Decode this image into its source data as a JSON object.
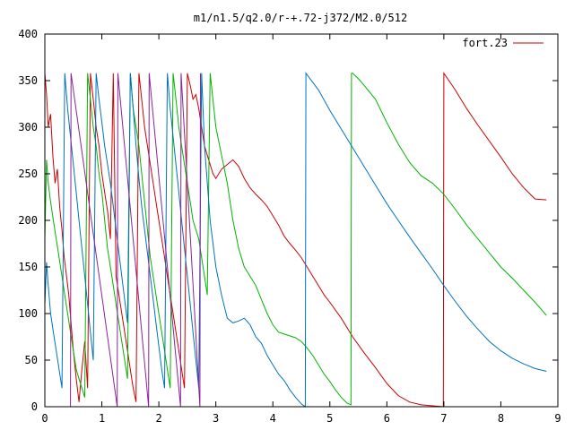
{
  "chart_data": {
    "type": "line",
    "title": "m1/n1.5/q2.0/r-+.72-j372/M2.0/512",
    "xlabel": "",
    "ylabel": "",
    "xlim": [
      0,
      9
    ],
    "ylim": [
      0,
      400
    ],
    "xticks": [
      0,
      1,
      2,
      3,
      4,
      5,
      6,
      7,
      8,
      9
    ],
    "yticks": [
      0,
      50,
      100,
      150,
      200,
      250,
      300,
      350,
      400
    ],
    "grid": false,
    "legend": {
      "position": "top-right",
      "entries": [
        "fort.23"
      ]
    },
    "colors": {
      "red": "#cc0000",
      "green": "#00b400",
      "blue": "#0072bd",
      "purple": "#8b2299",
      "axis": "#000000"
    },
    "series": [
      {
        "name": "fort.23",
        "color": "#cc0000",
        "x": [
          0.0,
          0.03,
          0.06,
          0.1,
          0.14,
          0.18,
          0.22,
          0.26,
          0.3,
          0.34,
          0.38,
          0.42,
          0.46,
          0.5,
          0.55,
          0.6,
          0.65,
          0.7,
          0.75,
          0.8,
          0.85,
          0.9,
          0.95,
          1.0,
          1.05,
          1.1,
          1.15,
          1.2,
          1.25,
          1.3,
          1.35,
          1.4,
          1.45,
          1.5,
          1.55,
          1.6,
          1.65,
          1.7,
          1.75,
          1.8,
          1.85,
          1.9,
          1.95,
          2.0,
          2.05,
          2.1,
          2.15,
          2.2,
          2.25,
          2.3,
          2.35,
          2.4,
          2.45,
          2.5,
          2.55,
          2.6,
          2.65,
          2.7,
          2.75,
          2.8,
          2.85,
          2.9,
          2.95,
          3.0,
          3.1,
          3.2,
          3.3,
          3.4,
          3.5,
          3.6,
          3.7,
          3.8,
          3.9,
          4.0,
          4.1,
          4.2,
          4.3,
          4.4,
          4.5,
          4.6,
          4.7,
          4.8,
          4.9,
          5.0,
          5.2,
          5.4,
          5.6,
          5.8,
          6.0,
          6.2,
          6.4,
          6.6,
          6.8,
          6.99,
          7.0,
          7.2,
          7.4,
          7.6,
          7.8,
          8.0,
          8.2,
          8.4,
          8.6,
          8.8
        ],
        "y": [
          358,
          335,
          300,
          314,
          270,
          240,
          255,
          215,
          190,
          160,
          140,
          120,
          90,
          60,
          30,
          5,
          40,
          70,
          20,
          358,
          330,
          300,
          280,
          250,
          230,
          210,
          180,
          358,
          140,
          120,
          100,
          80,
          60,
          40,
          20,
          5,
          358,
          330,
          300,
          280,
          260,
          240,
          220,
          200,
          180,
          160,
          140,
          120,
          100,
          80,
          60,
          40,
          20,
          358,
          345,
          330,
          335,
          320,
          300,
          280,
          270,
          260,
          250,
          245,
          255,
          260,
          265,
          258,
          245,
          235,
          228,
          222,
          215,
          205,
          195,
          183,
          175,
          168,
          160,
          150,
          140,
          130,
          120,
          112,
          95,
          75,
          58,
          42,
          25,
          12,
          5,
          2,
          1,
          0,
          358,
          340,
          320,
          302,
          285,
          268,
          250,
          235,
          223,
          222
        ]
      },
      {
        "name": "",
        "color": "#00b400",
        "x": [
          0.0,
          0.03,
          0.06,
          0.1,
          0.15,
          0.2,
          0.25,
          0.3,
          0.35,
          0.4,
          0.45,
          0.5,
          0.55,
          0.6,
          0.65,
          0.7,
          0.75,
          0.8,
          0.85,
          0.9,
          0.95,
          1.0,
          1.05,
          1.1,
          1.15,
          1.2,
          1.25,
          1.3,
          1.35,
          1.4,
          1.45,
          1.5,
          1.55,
          1.6,
          1.65,
          1.7,
          1.75,
          1.8,
          1.85,
          1.9,
          1.95,
          2.0,
          2.05,
          2.1,
          2.15,
          2.2,
          2.25,
          2.3,
          2.35,
          2.4,
          2.45,
          2.5,
          2.55,
          2.6,
          2.65,
          2.7,
          2.75,
          2.8,
          2.85,
          2.9,
          3.0,
          3.1,
          3.2,
          3.3,
          3.4,
          3.5,
          3.6,
          3.7,
          3.8,
          3.9,
          4.0,
          4.1,
          4.2,
          4.3,
          4.4,
          4.5,
          4.6,
          4.7,
          4.8,
          4.9,
          5.0,
          5.1,
          5.2,
          5.3,
          5.37,
          5.38,
          5.4,
          5.5,
          5.6,
          5.8,
          6.0,
          6.2,
          6.4,
          6.6,
          6.8,
          7.0,
          7.2,
          7.4,
          7.6,
          7.8,
          8.0,
          8.2,
          8.4,
          8.6,
          8.8
        ],
        "y": [
          180,
          265,
          240,
          220,
          200,
          180,
          160,
          140,
          120,
          100,
          80,
          60,
          40,
          30,
          20,
          10,
          358,
          330,
          300,
          280,
          250,
          230,
          200,
          170,
          150,
          130,
          110,
          90,
          70,
          50,
          30,
          358,
          320,
          300,
          280,
          250,
          220,
          190,
          160,
          140,
          120,
          100,
          80,
          60,
          40,
          20,
          358,
          330,
          300,
          280,
          260,
          240,
          220,
          200,
          190,
          180,
          160,
          140,
          120,
          358,
          300,
          270,
          240,
          200,
          170,
          150,
          140,
          130,
          115,
          100,
          88,
          80,
          78,
          76,
          74,
          70,
          63,
          55,
          45,
          35,
          27,
          18,
          10,
          4,
          2,
          358,
          358,
          352,
          345,
          330,
          305,
          282,
          262,
          248,
          240,
          228,
          212,
          195,
          180,
          165,
          150,
          138,
          125,
          112,
          98
        ]
      },
      {
        "name": "",
        "color": "#0072bd",
        "x": [
          0.0,
          0.03,
          0.06,
          0.1,
          0.15,
          0.2,
          0.25,
          0.3,
          0.35,
          0.4,
          0.45,
          0.5,
          0.55,
          0.6,
          0.65,
          0.7,
          0.75,
          0.8,
          0.85,
          0.9,
          0.95,
          1.0,
          1.05,
          1.1,
          1.15,
          1.2,
          1.25,
          1.3,
          1.35,
          1.4,
          1.45,
          1.5,
          1.55,
          1.6,
          1.65,
          1.7,
          1.75,
          1.8,
          1.85,
          1.9,
          1.95,
          2.0,
          2.05,
          2.1,
          2.15,
          2.2,
          2.25,
          2.3,
          2.35,
          2.4,
          2.45,
          2.5,
          2.55,
          2.6,
          2.65,
          2.7,
          2.75,
          2.8,
          2.9,
          3.0,
          3.1,
          3.2,
          3.3,
          3.4,
          3.5,
          3.6,
          3.7,
          3.8,
          3.9,
          4.0,
          4.1,
          4.2,
          4.3,
          4.4,
          4.5,
          4.57,
          4.58,
          4.8,
          5.0,
          5.2,
          5.4,
          5.6,
          5.8,
          6.0,
          6.2,
          6.4,
          6.6,
          6.8,
          7.0,
          7.2,
          7.4,
          7.6,
          7.8,
          8.0,
          8.2,
          8.4,
          8.6,
          8.8
        ],
        "y": [
          110,
          155,
          130,
          100,
          80,
          60,
          40,
          20,
          358,
          320,
          290,
          260,
          230,
          200,
          170,
          140,
          110,
          80,
          50,
          358,
          330,
          305,
          280,
          260,
          240,
          215,
          190,
          165,
          140,
          115,
          90,
          358,
          320,
          280,
          245,
          215,
          190,
          165,
          140,
          115,
          90,
          65,
          40,
          20,
          358,
          320,
          290,
          260,
          230,
          200,
          170,
          140,
          110,
          80,
          50,
          20,
          358,
          280,
          200,
          150,
          120,
          95,
          90,
          92,
          95,
          88,
          75,
          68,
          55,
          45,
          35,
          28,
          18,
          10,
          3,
          0,
          358,
          340,
          318,
          298,
          278,
          258,
          238,
          218,
          200,
          182,
          165,
          148,
          130,
          113,
          97,
          83,
          70,
          60,
          52,
          46,
          41,
          38
        ]
      },
      {
        "name": "",
        "color": "#8b2299",
        "x": [
          0.45,
          0.46,
          1.27,
          1.28,
          1.82,
          1.83,
          2.38,
          2.39,
          2.72,
          2.73
        ],
        "y": [
          0,
          358,
          0,
          358,
          0,
          358,
          0,
          358,
          0,
          358
        ]
      }
    ]
  }
}
